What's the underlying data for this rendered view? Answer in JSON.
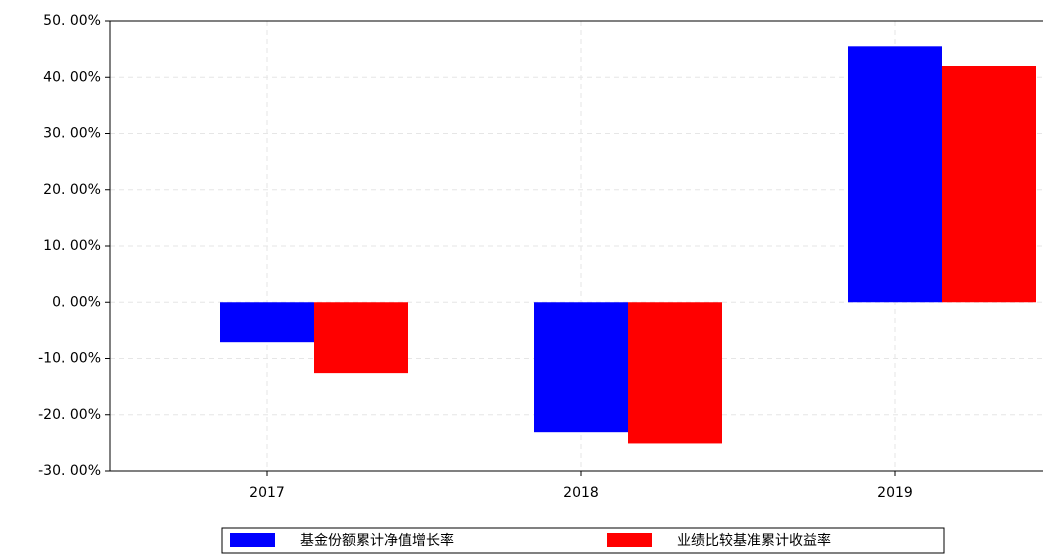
{
  "chart_data": {
    "type": "bar",
    "categories": [
      "2017",
      "2018",
      "2019"
    ],
    "series": [
      {
        "name": "基金份额累计净值增长率",
        "color": "#0000ff",
        "values": [
          -7.1,
          -23.1,
          45.5
        ]
      },
      {
        "name": "业绩比较基准累计收益率",
        "color": "#ff0000",
        "values": [
          -12.6,
          -25.1,
          42.0
        ]
      }
    ],
    "ylim": [
      -30,
      50
    ],
    "yticks": [
      {
        "value": 50,
        "label": "50. 00%"
      },
      {
        "value": 40,
        "label": "40. 00%"
      },
      {
        "value": 30,
        "label": "30. 00%"
      },
      {
        "value": 20,
        "label": "20. 00%"
      },
      {
        "value": 10,
        "label": "10. 00%"
      },
      {
        "value": 0,
        "label": "0. 00%"
      },
      {
        "value": -10,
        "label": "-10. 00%"
      },
      {
        "value": -20,
        "label": "-20. 00%"
      },
      {
        "value": -30,
        "label": "-30. 00%"
      }
    ],
    "grid": true,
    "legend": "bottom"
  }
}
